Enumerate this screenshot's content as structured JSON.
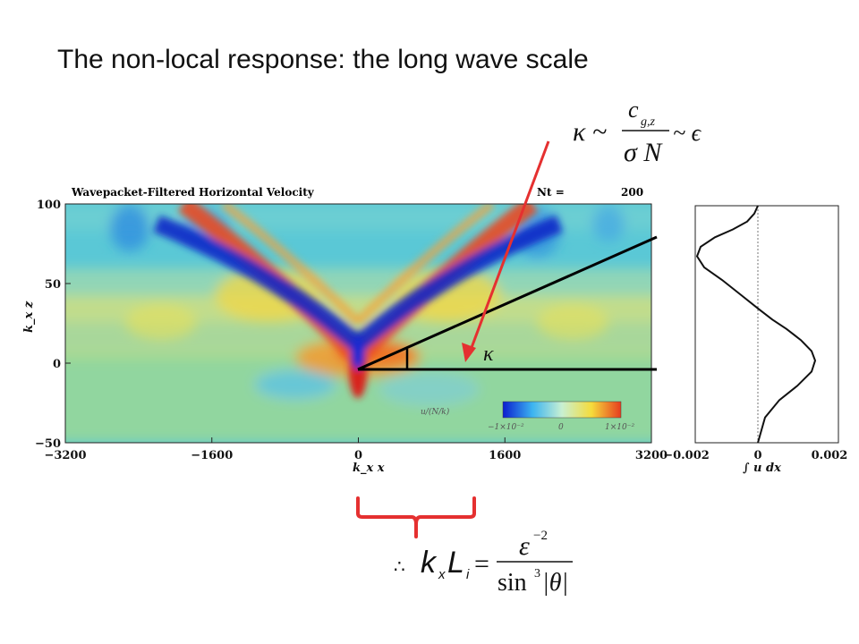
{
  "slide": {
    "title": "The non-local response: the long wave scale"
  },
  "chart_data": [
    {
      "type": "heatmap",
      "title": "Wavepacket-Filtered Horizontal Velocity",
      "annotation_label": "Nt =",
      "annotation_value": "200",
      "xlabel": "k_x x",
      "ylabel": "k_x z",
      "xlim": [
        -3200,
        3200
      ],
      "ylim": [
        -50,
        100
      ],
      "x_ticks": [
        "−3200",
        "−1600",
        "0",
        "1600",
        "3200"
      ],
      "y_ticks": [
        "100",
        "50",
        "0",
        "−50"
      ],
      "colorbar": {
        "label": "u/(N/k)",
        "tick_labels": [
          "−1×10⁻²",
          "0",
          "1×10⁻²"
        ],
        "colors": [
          "#0a1ed0",
          "#3cb4f0",
          "#c8f0d2",
          "#f5dc3c",
          "#e63c1e"
        ]
      }
    },
    {
      "type": "line",
      "xlabel": "∫ u dx",
      "x_ticks": [
        "−0.002",
        "0",
        "0.002"
      ],
      "xlim": [
        -0.002,
        0.002
      ],
      "ylim": [
        -50,
        100
      ],
      "series": [
        {
          "x": [
            0,
            -0.0001,
            -0.0003,
            -0.0007,
            -0.0012,
            -0.0016,
            -0.0017,
            -0.0015,
            -0.001,
            -0.0005,
            0,
            0.0004,
            0.0008,
            0.0012,
            0.0015,
            0.0016,
            0.0015,
            0.0011,
            0.0006,
            0.0002,
            0
          ],
          "y": [
            100,
            95,
            90,
            85,
            80,
            74,
            68,
            61,
            53,
            44,
            35,
            28,
            22,
            15,
            8,
            2,
            -5,
            -14,
            -23,
            -34,
            -50
          ]
        }
      ]
    }
  ],
  "annotations": {
    "kappa_label": "κ",
    "eq_top": {
      "lhs": "κ ~",
      "numerator_c": "c",
      "numerator_sub": "g,z",
      "denominator": "σ N",
      "rhs": "~ ϵ"
    },
    "eq_bottom": {
      "marker": "∴",
      "k": "k",
      "k_sub": "x",
      "L": "L",
      "L_sub": "i",
      "equals": "=",
      "numerator": "ε",
      "numerator_exp": "−2",
      "denominator": "sin",
      "denominator_exp": "3",
      "denominator_arg": "|θ|"
    },
    "colors": {
      "arrow": "#e53030",
      "bracket": "#e53030"
    }
  }
}
